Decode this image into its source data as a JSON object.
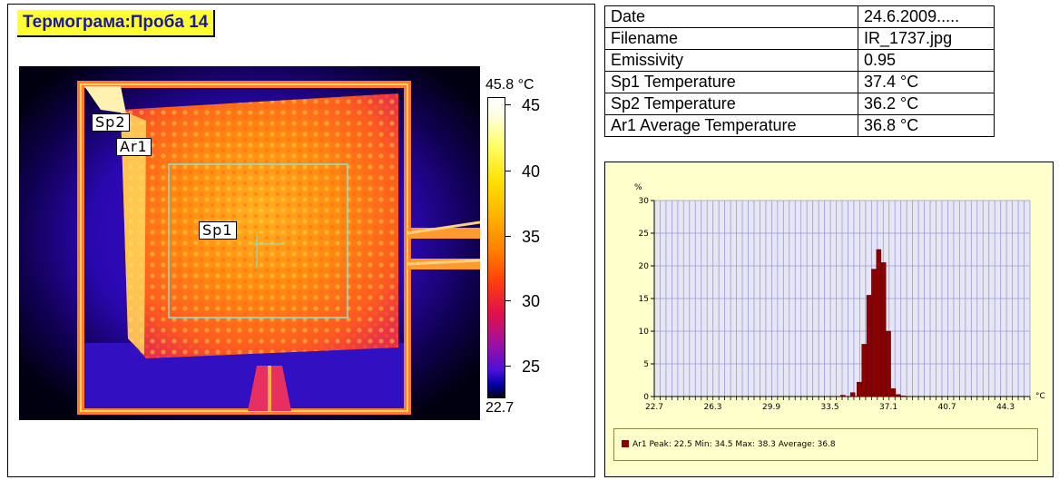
{
  "title": "Термограма:Проба 14",
  "thermogram": {
    "markers": [
      {
        "id": "sp2",
        "label": "Sp2"
      },
      {
        "id": "ar1",
        "label": "Ar1"
      },
      {
        "id": "sp1",
        "label": "Sp1"
      }
    ]
  },
  "colorbar": {
    "max_label": "45.8 °C",
    "min_label": "22.7",
    "ticks": [
      "45",
      "40",
      "35",
      "30",
      "25"
    ],
    "max": 45.8,
    "min": 22.7
  },
  "info_table": [
    {
      "label": "Date",
      "value": "24.6.2009....."
    },
    {
      "label": "Filename",
      "value": "IR_1737.jpg"
    },
    {
      "label": "Emissivity",
      "value": "0.95"
    },
    {
      "label": "Sp1 Temperature",
      "value": "37.4 °C"
    },
    {
      "label": "Sp2 Temperature",
      "value": "36.2 °C"
    },
    {
      "label": "Ar1 Average Temperature",
      "value": "36.8 °C"
    }
  ],
  "chart_data": {
    "type": "bar",
    "ylabel": "%",
    "xlabel": "°C",
    "ylim": [
      0,
      30
    ],
    "xlim": [
      22.7,
      45.8
    ],
    "y_ticks": [
      0,
      5,
      10,
      15,
      20,
      25,
      30
    ],
    "x_tick_labels": [
      "22.7",
      "26.3",
      "29.9",
      "33.5",
      "37.1",
      "40.7",
      "44.3"
    ],
    "grid": true,
    "series": [
      {
        "name": "Ar1",
        "x": [
          34.3,
          34.9,
          35.3,
          35.6,
          35.9,
          36.2,
          36.5,
          36.8,
          37.1,
          37.4,
          37.7,
          38.0
        ],
        "values": [
          0.2,
          0.6,
          2.2,
          8.0,
          15.5,
          19.5,
          22.5,
          20.5,
          10.0,
          1.2,
          0.3,
          0.1
        ]
      }
    ],
    "legend": "Ar1 Peak: 22.5 Min: 34.5 Max: 38.3 Average: 36.8",
    "legend_position": "bottom"
  }
}
